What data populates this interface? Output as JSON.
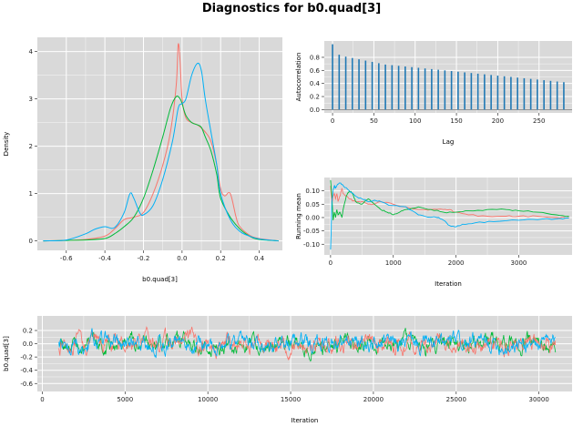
{
  "title": "Diagnostics for b0.quad[3]",
  "colors": [
    "#f8766d",
    "#00ba38",
    "#00b0f6"
  ],
  "chart_data": [
    {
      "type": "line",
      "name": "density",
      "xlabel": "b0.quad[3]",
      "ylabel": "Density",
      "xlim": [
        -0.75,
        0.52
      ],
      "ylim": [
        -0.2,
        4.3
      ],
      "xticks": [
        -0.6,
        -0.4,
        -0.2,
        0.0,
        0.2,
        0.4
      ],
      "xtick_labels": [
        "-0.6",
        "-0.4",
        "-0.2",
        "0.0",
        "0.2",
        "0.4"
      ],
      "yticks": [
        0,
        1,
        2,
        3,
        4
      ],
      "ytick_labels": [
        "0",
        "1",
        "2",
        "3",
        "4"
      ],
      "series": [
        {
          "x": [
            -0.72,
            -0.6,
            -0.5,
            -0.4,
            -0.35,
            -0.3,
            -0.25,
            -0.2,
            -0.15,
            -0.1,
            -0.06,
            -0.03,
            -0.02,
            -0.01,
            0.0,
            0.02,
            0.05,
            0.08,
            0.12,
            0.15,
            0.18,
            0.2,
            0.22,
            0.25,
            0.28,
            0.3,
            0.35,
            0.4,
            0.5
          ],
          "y": [
            0,
            0.01,
            0.03,
            0.1,
            0.25,
            0.45,
            0.5,
            0.6,
            1.0,
            1.6,
            2.3,
            3.3,
            4.15,
            3.8,
            3.0,
            2.6,
            2.5,
            2.45,
            2.3,
            2.1,
            1.6,
            1.1,
            0.95,
            1.0,
            0.5,
            0.3,
            0.12,
            0.05,
            0.0
          ]
        },
        {
          "x": [
            -0.72,
            -0.6,
            -0.5,
            -0.4,
            -0.35,
            -0.3,
            -0.25,
            -0.2,
            -0.15,
            -0.1,
            -0.06,
            -0.03,
            -0.01,
            0.0,
            0.02,
            0.05,
            0.08,
            0.1,
            0.12,
            0.15,
            0.18,
            0.2,
            0.25,
            0.3,
            0.35,
            0.4,
            0.5
          ],
          "y": [
            0,
            0.01,
            0.02,
            0.05,
            0.15,
            0.3,
            0.5,
            0.9,
            1.5,
            2.2,
            2.8,
            3.05,
            3.0,
            2.9,
            2.65,
            2.5,
            2.45,
            2.4,
            2.2,
            1.9,
            1.4,
            0.9,
            0.5,
            0.25,
            0.1,
            0.03,
            0.0
          ]
        },
        {
          "x": [
            -0.72,
            -0.6,
            -0.5,
            -0.45,
            -0.4,
            -0.35,
            -0.3,
            -0.27,
            -0.25,
            -0.22,
            -0.2,
            -0.15,
            -0.1,
            -0.05,
            -0.02,
            0.0,
            0.02,
            0.05,
            0.08,
            0.1,
            0.12,
            0.15,
            0.18,
            0.2,
            0.25,
            0.3,
            0.35,
            0.4,
            0.5
          ],
          "y": [
            0,
            0.02,
            0.15,
            0.25,
            0.3,
            0.28,
            0.6,
            1.0,
            0.9,
            0.6,
            0.55,
            0.75,
            1.3,
            2.1,
            2.8,
            2.9,
            3.0,
            3.5,
            3.75,
            3.6,
            3.0,
            2.3,
            1.6,
            1.0,
            0.45,
            0.2,
            0.1,
            0.04,
            0.0
          ]
        }
      ]
    },
    {
      "type": "bar",
      "name": "autocorrelation",
      "xlabel": "Lag",
      "ylabel": "Autocorrelation",
      "xlim": [
        -10,
        290
      ],
      "ylim": [
        -0.05,
        1.05
      ],
      "xticks": [
        0,
        50,
        100,
        150,
        200,
        250
      ],
      "xtick_labels": [
        "0",
        "50",
        "100",
        "150",
        "200",
        "250"
      ],
      "yticks": [
        0.0,
        0.2,
        0.4,
        0.6,
        0.8
      ],
      "ytick_labels": [
        "0.0",
        "0.2",
        "0.4",
        "0.6",
        "0.8"
      ],
      "lags": [
        0,
        8,
        16,
        24,
        32,
        40,
        48,
        56,
        64,
        72,
        80,
        88,
        96,
        104,
        112,
        120,
        128,
        136,
        144,
        152,
        160,
        168,
        176,
        184,
        192,
        200,
        208,
        216,
        224,
        232,
        240,
        248,
        256,
        264,
        272,
        280
      ],
      "values": [
        1.0,
        0.84,
        0.81,
        0.79,
        0.77,
        0.75,
        0.73,
        0.71,
        0.69,
        0.68,
        0.67,
        0.66,
        0.65,
        0.64,
        0.63,
        0.62,
        0.61,
        0.6,
        0.59,
        0.58,
        0.57,
        0.56,
        0.55,
        0.54,
        0.53,
        0.52,
        0.51,
        0.5,
        0.49,
        0.48,
        0.47,
        0.46,
        0.45,
        0.44,
        0.43,
        0.42
      ]
    },
    {
      "type": "line",
      "name": "running-mean",
      "xlabel": "Iteration",
      "ylabel": "Running mean",
      "xlim": [
        -100,
        3850
      ],
      "ylim": [
        -0.14,
        0.15
      ],
      "xticks": [
        0,
        1000,
        2000,
        3000
      ],
      "xtick_labels": [
        "0",
        "1000",
        "2000",
        "3000"
      ],
      "yticks": [
        -0.1,
        -0.05,
        0.0,
        0.05,
        0.1
      ],
      "ytick_labels": [
        "-0.10",
        "-0.05",
        "0.00",
        "0.05",
        "0.10"
      ],
      "series": [
        {
          "x": [
            0,
            20,
            40,
            60,
            80,
            100,
            120,
            150,
            180,
            200,
            250,
            300,
            400,
            500,
            600,
            700,
            800,
            1000,
            1200,
            1400,
            1600,
            1800,
            1900,
            2000,
            2200,
            2500,
            2800,
            3000,
            3300,
            3600,
            3800
          ],
          "y": [
            0.12,
            0.05,
            0.08,
            0.09,
            0.07,
            0.09,
            0.06,
            0.08,
            0.11,
            0.09,
            0.08,
            0.07,
            0.06,
            0.06,
            0.05,
            0.05,
            0.06,
            0.05,
            0.04,
            0.03,
            0.03,
            0.03,
            0.03,
            0.02,
            0.01,
            0.005,
            0.005,
            0.005,
            0.005,
            0.0,
            0.0
          ]
        },
        {
          "x": [
            0,
            20,
            40,
            60,
            80,
            100,
            120,
            150,
            180,
            200,
            250,
            300,
            350,
            400,
            500,
            600,
            700,
            800,
            900,
            1000,
            1100,
            1200,
            1400,
            1600,
            1800,
            2000,
            2200,
            2500,
            2800,
            3000,
            3300,
            3600,
            3800
          ],
          "y": [
            0.14,
            0.08,
            -0.01,
            0.02,
            0.0,
            0.03,
            0.01,
            0.02,
            0.0,
            0.03,
            0.08,
            0.1,
            0.09,
            0.06,
            0.05,
            0.07,
            0.05,
            0.03,
            0.02,
            0.01,
            0.02,
            0.03,
            0.04,
            0.03,
            0.02,
            0.02,
            0.025,
            0.03,
            0.03,
            0.025,
            0.02,
            0.01,
            0.005
          ]
        },
        {
          "x": [
            0,
            10,
            20,
            40,
            60,
            80,
            100,
            150,
            200,
            300,
            400,
            500,
            600,
            700,
            800,
            900,
            1000,
            1200,
            1400,
            1500,
            1700,
            1800,
            1900,
            2000,
            2100,
            2300,
            2600,
            3000,
            3300,
            3600,
            3800
          ],
          "y": [
            -0.12,
            -0.05,
            0.06,
            0.1,
            0.12,
            0.11,
            0.12,
            0.13,
            0.12,
            0.1,
            0.08,
            0.07,
            0.06,
            0.065,
            0.06,
            0.05,
            0.045,
            0.04,
            0.01,
            0.005,
            0.0,
            -0.01,
            -0.03,
            -0.035,
            -0.025,
            -0.02,
            -0.015,
            -0.01,
            -0.008,
            -0.005,
            -0.002
          ]
        }
      ]
    },
    {
      "type": "line",
      "name": "trace",
      "xlabel": "Iteration",
      "ylabel": "b0.quad[3]",
      "xlim": [
        -300,
        32000
      ],
      "ylim": [
        -0.72,
        0.42
      ],
      "xticks": [
        0,
        5000,
        10000,
        15000,
        20000,
        25000,
        30000
      ],
      "xtick_labels": [
        "0",
        "5000",
        "10000",
        "15000",
        "20000",
        "25000",
        "30000"
      ],
      "yticks": [
        -0.6,
        -0.4,
        -0.2,
        0.0,
        0.2
      ],
      "ytick_labels": [
        "-0.6",
        "-0.4",
        "-0.2",
        "0.0",
        "0.2"
      ],
      "iterations": [
        1000,
        31000
      ],
      "series": [
        {
          "mean": 0.0,
          "sd": 0.12
        },
        {
          "mean": 0.0,
          "sd": 0.12
        },
        {
          "mean": 0.0,
          "sd": 0.12
        }
      ]
    }
  ]
}
